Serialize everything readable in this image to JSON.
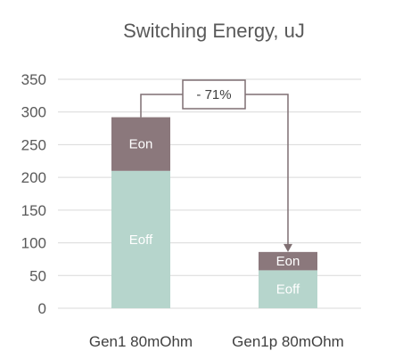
{
  "chart_data": {
    "type": "bar",
    "stacked": true,
    "title": "Switching Energy, uJ",
    "xlabel": "",
    "ylabel": "",
    "categories": [
      "Gen1 80mOhm",
      "Gen1p 80mOhm"
    ],
    "series": [
      {
        "name": "Eoff",
        "values": [
          210,
          58
        ],
        "color": "#b6d5cc"
      },
      {
        "name": "Eon",
        "values": [
          82,
          28
        ],
        "color": "#8b787c"
      }
    ],
    "ylim": [
      0,
      350
    ],
    "yticks": [
      0,
      50,
      100,
      150,
      200,
      250,
      300,
      350
    ],
    "grid": true,
    "legend": "none",
    "annotation": {
      "text": "- 71%",
      "from_category": 0,
      "to_category": 1
    },
    "colors": {
      "text": "#595959",
      "grid": "#d9d9d9",
      "callout": "#7f6f72"
    }
  }
}
